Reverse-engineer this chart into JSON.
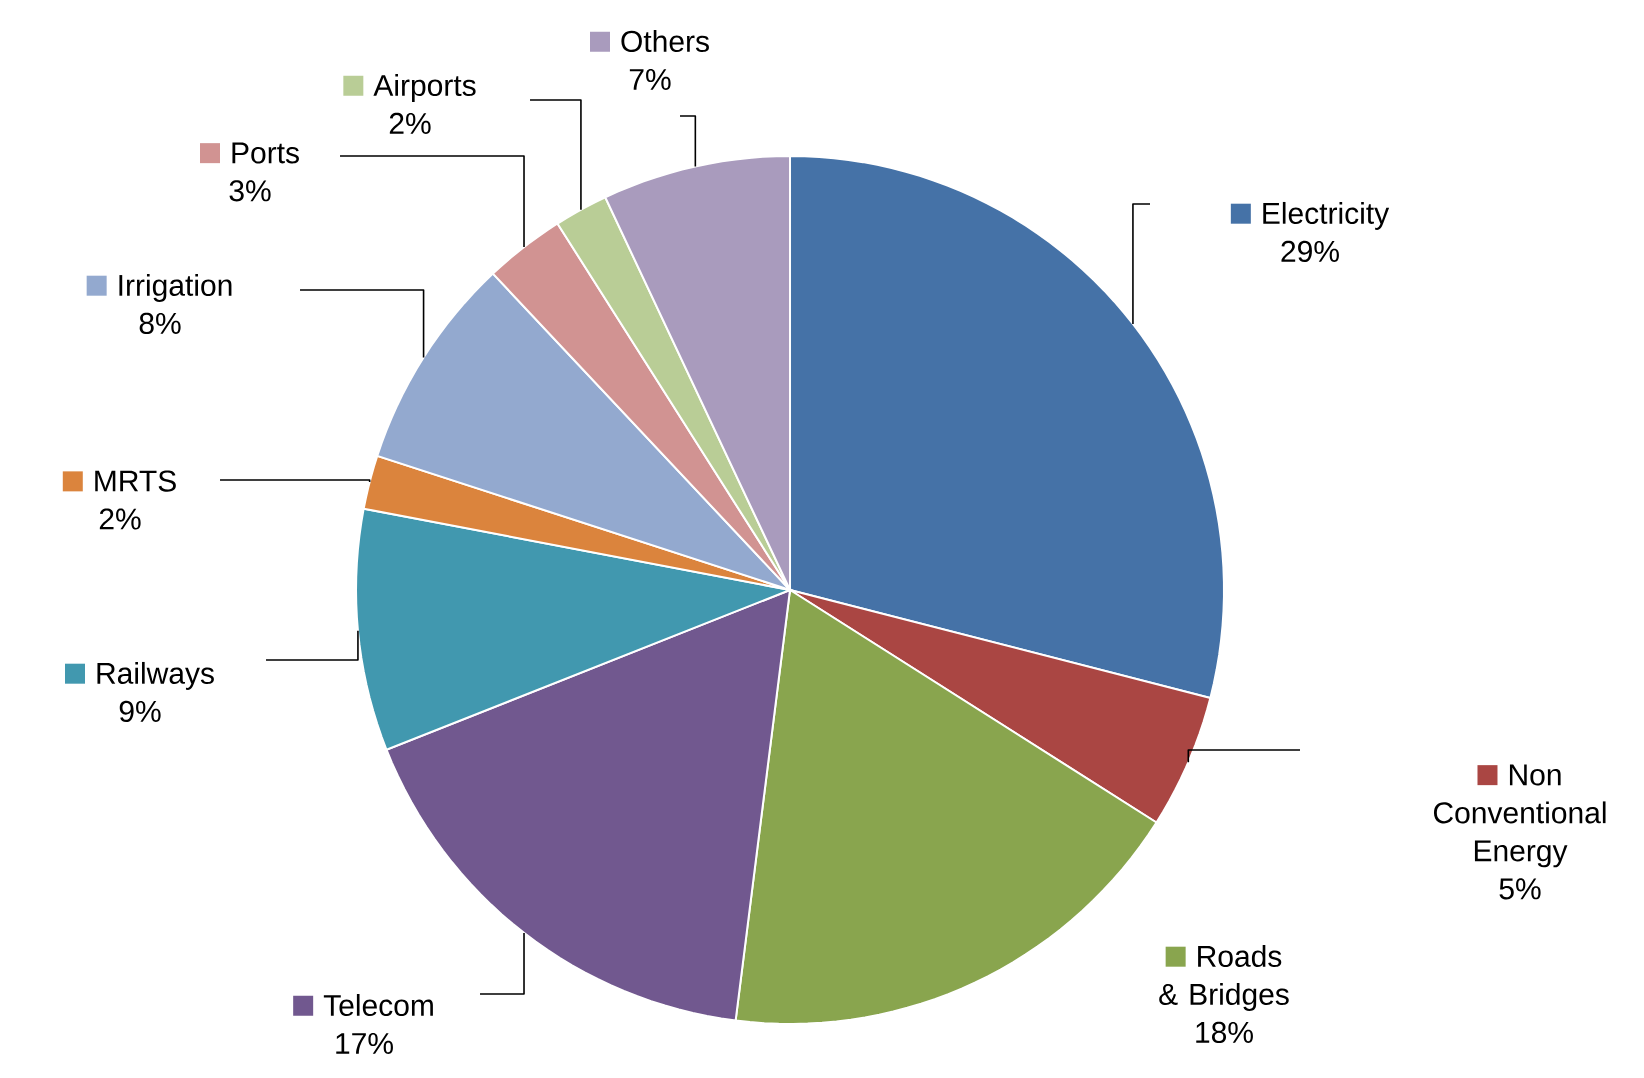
{
  "chart_data": {
    "type": "pie",
    "categories": [
      "Electricity",
      "Non Conventional Energy",
      "Roads & Bridges",
      "Telecom",
      "Railways",
      "MRTS",
      "Irrigation",
      "Ports",
      "Airports",
      "Others"
    ],
    "values": [
      29,
      5,
      18,
      17,
      9,
      2,
      8,
      3,
      2,
      7
    ],
    "value_labels": [
      "29%",
      "5%",
      "18%",
      "17%",
      "9%",
      "2%",
      "8%",
      "3%",
      "2%",
      "7%"
    ],
    "colors": [
      "#4572a7",
      "#aa4643",
      "#89a54e",
      "#71588f",
      "#4198af",
      "#db843d",
      "#93a9cf",
      "#d19392",
      "#b9cd96",
      "#a99bbd"
    ],
    "legend": "right"
  }
}
